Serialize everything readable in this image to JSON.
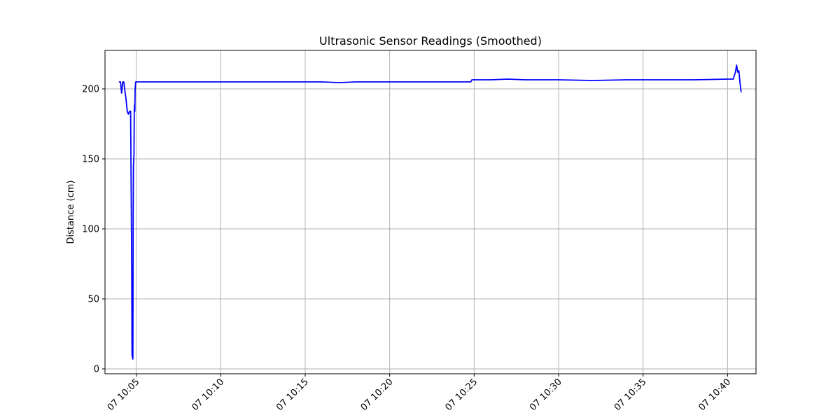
{
  "chart_data": {
    "type": "line",
    "title": "Ultrasonic Sensor Readings (Smoothed)",
    "xlabel": "",
    "ylabel": "Distance (cm)",
    "x_ticks": [
      {
        "time": "10:05",
        "label": "07 10:05"
      },
      {
        "time": "10:10",
        "label": "07 10:10"
      },
      {
        "time": "10:15",
        "label": "07 10:15"
      },
      {
        "time": "10:20",
        "label": "07 10:20"
      },
      {
        "time": "10:25",
        "label": "07 10:25"
      },
      {
        "time": "10:30",
        "label": "07 10:30"
      },
      {
        "time": "10:35",
        "label": "07 10:35"
      },
      {
        "time": "10:40",
        "label": "07 10:40"
      }
    ],
    "y_ticks": [
      0,
      50,
      100,
      150,
      200
    ],
    "xlim": [
      "10:03:09",
      "10:41:41"
    ],
    "ylim": [
      -3.5,
      227.5
    ],
    "grid": true,
    "line_color": "#0000ff",
    "series": [
      {
        "x": [
          "10:04:00",
          "10:04:04",
          "10:04:08",
          "10:04:12",
          "10:04:16",
          "10:04:20",
          "10:04:24",
          "10:04:28",
          "10:04:32",
          "10:04:36",
          "10:04:40",
          "10:04:44",
          "10:04:45",
          "10:04:48",
          "10:04:49",
          "10:04:50",
          "10:04:52",
          "10:04:53",
          "10:04:54",
          "10:04:55",
          "10:04:56",
          "10:04:58",
          "10:04:59",
          "10:05:00",
          "10:05:01",
          "10:05:05",
          "10:06:00",
          "10:08:00",
          "10:10:00",
          "10:12:00",
          "10:14:00",
          "10:16:00",
          "10:17:00",
          "10:18:00",
          "10:20:00",
          "10:22:00",
          "10:24:00",
          "10:24:48",
          "10:24:52",
          "10:26:00",
          "10:27:00",
          "10:28:00",
          "10:30:00",
          "10:32:00",
          "10:34:00",
          "10:36:00",
          "10:38:00",
          "10:40:00",
          "10:40:20",
          "10:40:28",
          "10:40:32",
          "10:40:36",
          "10:40:40",
          "10:40:44",
          "10:40:48"
        ],
        "y": [
          205,
          205,
          197,
          205,
          205,
          198,
          192,
          184,
          182,
          184,
          184,
          70,
          10,
          7,
          110,
          145,
          153,
          185,
          189,
          184,
          200,
          205,
          205,
          205,
          205,
          205,
          205,
          205,
          205,
          205,
          205,
          205,
          204.5,
          205,
          205,
          205,
          205,
          205,
          206.5,
          206.5,
          207,
          206.5,
          206.5,
          206,
          206.5,
          206.5,
          206.5,
          207,
          207,
          212,
          217,
          212,
          213,
          205,
          198
        ]
      }
    ]
  }
}
